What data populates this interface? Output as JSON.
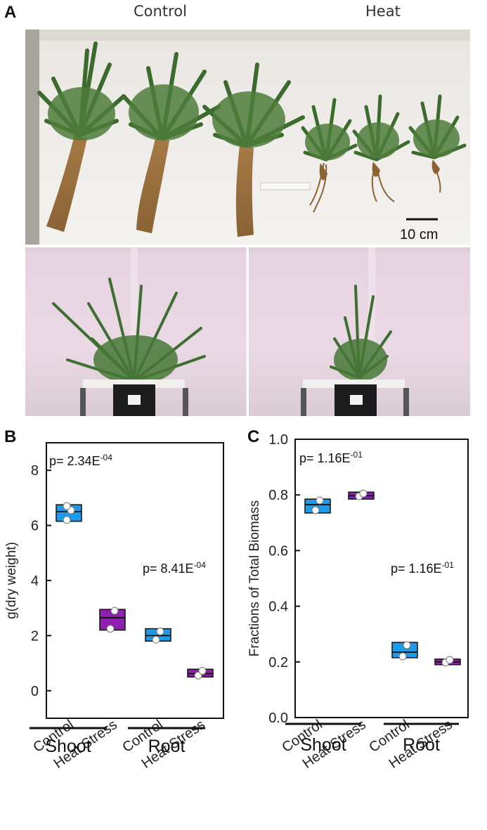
{
  "panels": {
    "A": "A",
    "B": "B",
    "C": "C"
  },
  "photo_panel": {
    "conditions": [
      "Control",
      "Heat"
    ],
    "scale_bar_label": "10 cm"
  },
  "colors": {
    "control_box": "#1E9BE6",
    "heat_box": "#8E1FAF",
    "point_fill": "#ffffff",
    "axis": "#111111"
  },
  "chart_data": [
    {
      "type": "box",
      "panel": "B",
      "ylabel": "g(dry weight)",
      "ylim": [
        -1,
        9
      ],
      "yticks": [
        0,
        2,
        4,
        6,
        8
      ],
      "categories": [
        "Control",
        "Heat Stress",
        "Control",
        "Heat Stress"
      ],
      "groups": [
        "Shoot",
        "Root"
      ],
      "boxes": [
        {
          "category": "Control",
          "group": "Shoot",
          "q1": 6.15,
          "median": 6.5,
          "q3": 6.75,
          "points": [
            6.2,
            6.55,
            6.7
          ]
        },
        {
          "category": "Heat Stress",
          "group": "Shoot",
          "q1": 2.2,
          "median": 2.65,
          "q3": 2.95,
          "points": [
            2.25,
            2.9
          ]
        },
        {
          "category": "Control",
          "group": "Root",
          "q1": 1.8,
          "median": 2.0,
          "q3": 2.25,
          "points": [
            1.85,
            2.15
          ]
        },
        {
          "category": "Heat Stress",
          "group": "Root",
          "q1": 0.5,
          "median": 0.62,
          "q3": 0.78,
          "points": [
            0.55,
            0.72
          ]
        }
      ],
      "annotations": [
        {
          "group": "Shoot",
          "text": "p= 2.34E",
          "exp": "-04"
        },
        {
          "group": "Root",
          "text": "p= 8.41E",
          "exp": "-04"
        }
      ]
    },
    {
      "type": "box",
      "panel": "C",
      "ylabel": "Fractions of Total Biomass",
      "ylim": [
        0.0,
        1.0
      ],
      "yticks": [
        0.0,
        0.2,
        0.4,
        0.6,
        0.8,
        1.0
      ],
      "categories": [
        "Control",
        "Heat Stress",
        "Control",
        "Heat Stress"
      ],
      "groups": [
        "Shoot",
        "Root"
      ],
      "boxes": [
        {
          "category": "Control",
          "group": "Shoot",
          "q1": 0.735,
          "median": 0.765,
          "q3": 0.785,
          "points": [
            0.745,
            0.78
          ]
        },
        {
          "category": "Heat Stress",
          "group": "Shoot",
          "q1": 0.785,
          "median": 0.797,
          "q3": 0.81,
          "points": [
            0.795,
            0.805
          ]
        },
        {
          "category": "Control",
          "group": "Root",
          "q1": 0.215,
          "median": 0.235,
          "q3": 0.27,
          "points": [
            0.22,
            0.26
          ]
        },
        {
          "category": "Heat Stress",
          "group": "Root",
          "q1": 0.19,
          "median": 0.2,
          "q3": 0.21,
          "points": [
            0.198,
            0.207
          ]
        }
      ],
      "annotations": [
        {
          "group": "Shoot",
          "text": "p= 1.16E",
          "exp": "-01"
        },
        {
          "group": "Root",
          "text": "p= 1.16E",
          "exp": "-01"
        }
      ]
    }
  ]
}
